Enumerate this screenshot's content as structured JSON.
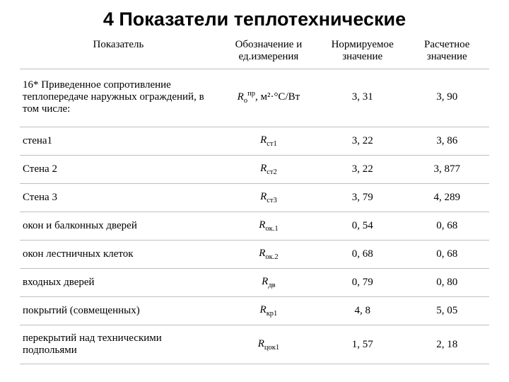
{
  "title": "4 Показатели теплотехнические",
  "headers": {
    "param": "Показатель",
    "unit": "Обозначение  и ед.измерения",
    "norm": "Нормируемое значение",
    "calc": "Расчетное значение"
  },
  "rows": [
    {
      "param": "16* Приведенное сопротивление теплопередаче наружных ограждений, в том числе:",
      "symbol_base": "R",
      "symbol_sub": "o",
      "symbol_sup": "пр",
      "unit_suffix": ", м²·°С/Вт",
      "norm": "3, 31",
      "calc": "3, 90",
      "tall": true
    },
    {
      "param": "стена1",
      "symbol_base": "R",
      "symbol_sub": "ст1",
      "symbol_sup": "",
      "unit_suffix": "",
      "norm": "3, 22",
      "calc": "3, 86",
      "tall": false
    },
    {
      "param": "Стена 2",
      "symbol_base": "R",
      "symbol_sub": "ст2",
      "symbol_sup": "",
      "unit_suffix": "",
      "norm": "3, 22",
      "calc": "3, 877",
      "tall": false
    },
    {
      "param": "Стена 3",
      "symbol_base": "R",
      "symbol_sub": "ст3",
      "symbol_sup": "",
      "unit_suffix": "",
      "norm": "3, 79",
      "calc": "4, 289",
      "tall": false
    },
    {
      "param": "окон и балконных дверей",
      "symbol_base": "R",
      "symbol_sub": "ок.1",
      "symbol_sup": "",
      "unit_suffix": "",
      "norm": "0, 54",
      "calc": "0, 68",
      "tall": false
    },
    {
      "param": "окон лестничных клеток",
      "symbol_base": "R",
      "symbol_sub": "ок.2",
      "symbol_sup": "",
      "unit_suffix": "",
      "norm": "0, 68",
      "calc": "0, 68",
      "tall": false
    },
    {
      "param": "входных дверей",
      "symbol_base": "R",
      "symbol_sub": "дв",
      "symbol_sup": "",
      "unit_suffix": "",
      "norm": "0, 79",
      "calc": "0, 80",
      "tall": false
    },
    {
      "param": "покрытий (совмещенных)",
      "symbol_base": "R",
      "symbol_sub": "кр1",
      "symbol_sup": "",
      "unit_suffix": "",
      "norm": "4, 8",
      "calc": "5, 05",
      "tall": false
    },
    {
      "param": "перекрытий над техническими подпольями",
      "symbol_base": "R",
      "symbol_sub": "цок1",
      "symbol_sup": "",
      "unit_suffix": "",
      "norm": "1, 57",
      "calc": "2, 18",
      "tall": false
    }
  ],
  "styling": {
    "background_color": "#ffffff",
    "text_color": "#000000",
    "border_color": "#bfbfbf",
    "title_fontsize": 27,
    "body_fontsize": 15,
    "font_family_title": "Arial",
    "font_family_body": "Georgia, Times New Roman"
  }
}
